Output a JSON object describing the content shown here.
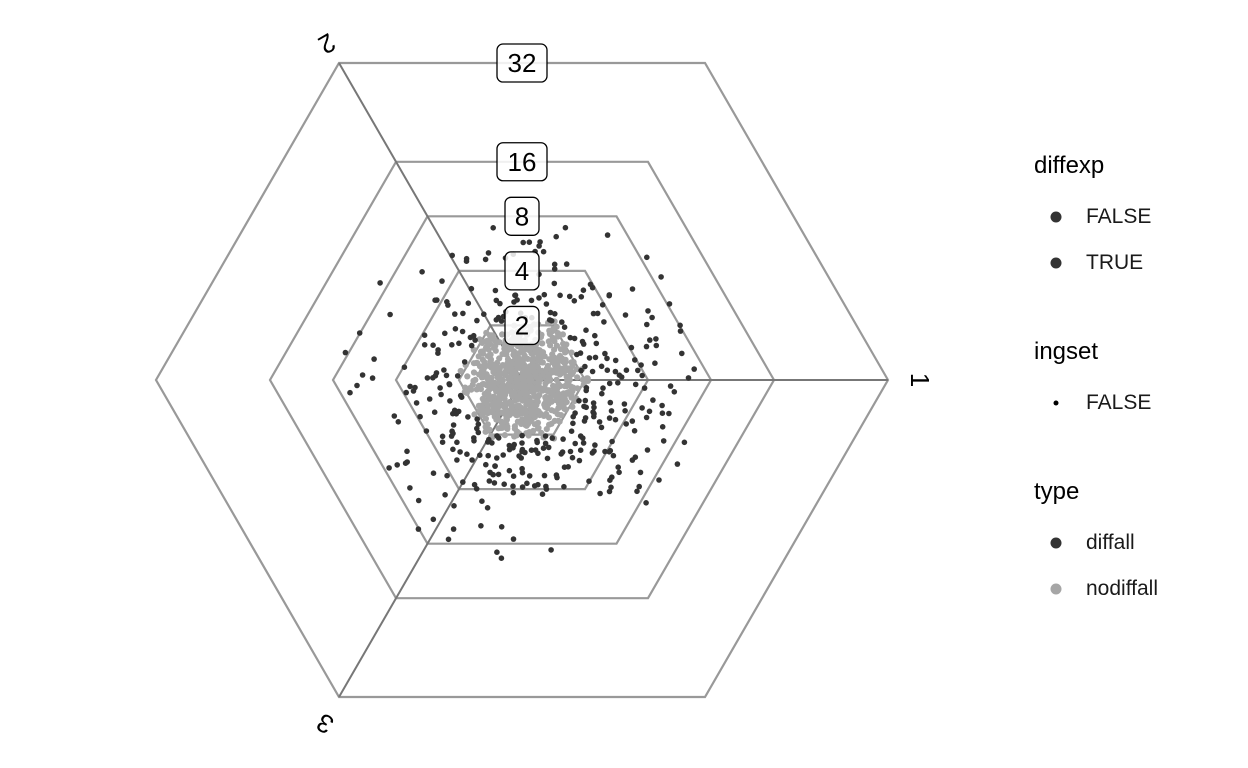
{
  "chart_data": {
    "type": "scatter",
    "title": "",
    "projection": "hexagonal-triwise",
    "axes": [
      "1",
      "2",
      "3"
    ],
    "rings": [
      "2",
      "4",
      "8",
      "16",
      "32"
    ],
    "ring_values": [
      2,
      4,
      8,
      16,
      32
    ],
    "series": [
      {
        "name": "diffall",
        "color": "#333333"
      },
      {
        "name": "nodiffall",
        "color": "#a6a6a6"
      }
    ],
    "point_count": {
      "diffall": 360,
      "nodiffall": 720
    }
  },
  "legend": {
    "diffexp": {
      "title": "diffexp",
      "items": [
        "FALSE",
        "TRUE"
      ]
    },
    "ingset": {
      "title": "ingset",
      "items": [
        "FALSE"
      ]
    },
    "type": {
      "title": "type",
      "items": [
        "diffall",
        "nodiffall"
      ]
    }
  },
  "colors": {
    "diffall": "#333333",
    "nodiffall": "#a6a6a6",
    "grid": "#999999",
    "axis": "#777777"
  }
}
